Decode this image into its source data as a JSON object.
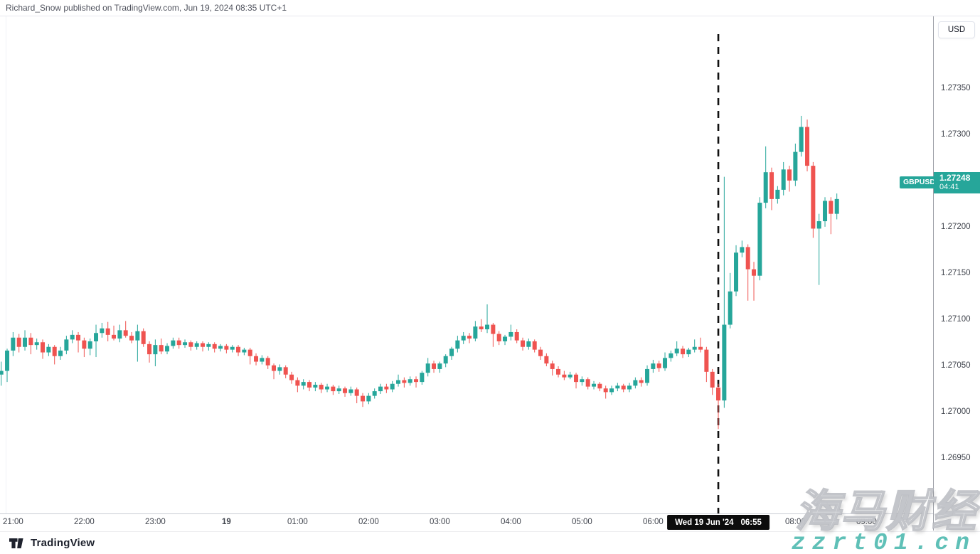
{
  "header": {
    "attribution": "Richard_Snow published on TradingView.com, Jun 19, 2024 08:35 UTC+1"
  },
  "price_axis": {
    "currency_label": "USD",
    "tick_labels": [
      "1.27350",
      "1.27300",
      "1.27250",
      "1.27200",
      "1.27150",
      "1.27100",
      "1.27050",
      "1.27000",
      "1.26950"
    ],
    "last_price_badge": {
      "symbol": "GBPUSD",
      "price": "1.27248",
      "countdown": "04:41",
      "color": "#26a69a"
    }
  },
  "time_axis": {
    "tick_labels": [
      {
        "text": "21:00",
        "index": 2
      },
      {
        "text": "22:00",
        "index": 14
      },
      {
        "text": "23:00",
        "index": 26
      },
      {
        "text": "19",
        "index": 38,
        "bold": true
      },
      {
        "text": "01:00",
        "index": 50
      },
      {
        "text": "02:00",
        "index": 62
      },
      {
        "text": "03:00",
        "index": 74
      },
      {
        "text": "04:00",
        "index": 86
      },
      {
        "text": "05:00",
        "index": 98
      },
      {
        "text": "06:00",
        "index": 110
      },
      {
        "text": "08:00",
        "index": 134
      },
      {
        "text": "09:00",
        "index": 146
      }
    ],
    "crosshair_badge": {
      "date": "Wed 19 Jun '24",
      "time": "06:55",
      "index": 121
    }
  },
  "footer": {
    "brand": "TradingView"
  },
  "watermark": {
    "line1": "海马财经",
    "line2": "zzrt01.cn",
    "accent_color": "#5fc0b7"
  },
  "chart_data": {
    "type": "candlestick",
    "symbol": "GBPUSD",
    "quote_currency": "USD",
    "interval_minutes": 5,
    "up_color": "#26a69a",
    "down_color": "#ef5350",
    "grid": false,
    "legend_position": "none",
    "y_axis": {
      "top_price": 1.27428,
      "bottom_price": 1.2689,
      "tick_step": 0.0005
    },
    "event_marker": {
      "style": "dashed-vertical-line",
      "color": "#111111",
      "time": "06:55",
      "candle_index": 121
    },
    "last_price": 1.27248,
    "columns": [
      "time",
      "open",
      "high",
      "low",
      "close"
    ],
    "candles": [
      [
        "20:50",
        1.27058,
        1.27072,
        1.27046,
        1.27062
      ],
      [
        "20:55",
        1.27062,
        1.27086,
        1.2705,
        1.27084
      ],
      [
        "21:00",
        1.27084,
        1.27104,
        1.27078,
        1.27098
      ],
      [
        "21:05",
        1.27098,
        1.27102,
        1.27082,
        1.27088
      ],
      [
        "21:10",
        1.27088,
        1.27106,
        1.27084,
        1.27098
      ],
      [
        "21:15",
        1.27098,
        1.27103,
        1.2708,
        1.2709
      ],
      [
        "21:20",
        1.2709,
        1.27097,
        1.27085,
        1.27093
      ],
      [
        "21:25",
        1.27093,
        1.27096,
        1.27075,
        1.27082
      ],
      [
        "21:30",
        1.27082,
        1.27091,
        1.27078,
        1.27088
      ],
      [
        "21:35",
        1.27088,
        1.2709,
        1.27069,
        1.27078
      ],
      [
        "21:40",
        1.27078,
        1.27088,
        1.27074,
        1.27084
      ],
      [
        "21:45",
        1.27084,
        1.271,
        1.2708,
        1.27096
      ],
      [
        "21:50",
        1.27096,
        1.27106,
        1.27092,
        1.27101
      ],
      [
        "21:55",
        1.27101,
        1.27104,
        1.27082,
        1.27095
      ],
      [
        "22:00",
        1.27095,
        1.27098,
        1.27077,
        1.27086
      ],
      [
        "22:05",
        1.27086,
        1.27097,
        1.27079,
        1.27094
      ],
      [
        "22:10",
        1.27094,
        1.27112,
        1.27077,
        1.27103
      ],
      [
        "22:15",
        1.27103,
        1.27114,
        1.27098,
        1.27108
      ],
      [
        "22:20",
        1.27108,
        1.27115,
        1.27094,
        1.27101
      ],
      [
        "22:25",
        1.27101,
        1.27111,
        1.27095,
        1.27097
      ],
      [
        "22:30",
        1.27097,
        1.27112,
        1.27093,
        1.27106
      ],
      [
        "22:35",
        1.27106,
        1.27116,
        1.27098,
        1.271
      ],
      [
        "22:40",
        1.271,
        1.27104,
        1.27092,
        1.27095
      ],
      [
        "22:45",
        1.27095,
        1.27112,
        1.27072,
        1.27105
      ],
      [
        "22:50",
        1.27105,
        1.27108,
        1.27088,
        1.27091
      ],
      [
        "22:55",
        1.27091,
        1.27094,
        1.27071,
        1.2708
      ],
      [
        "23:00",
        1.2708,
        1.27096,
        1.27067,
        1.2709
      ],
      [
        "23:05",
        1.2709,
        1.27097,
        1.2708,
        1.27083
      ],
      [
        "23:10",
        1.27083,
        1.27092,
        1.2708,
        1.27089
      ],
      [
        "23:15",
        1.27089,
        1.27098,
        1.27086,
        1.27095
      ],
      [
        "23:20",
        1.27095,
        1.27098,
        1.27086,
        1.2709
      ],
      [
        "23:25",
        1.2709,
        1.27096,
        1.27087,
        1.27093
      ],
      [
        "23:30",
        1.27093,
        1.27095,
        1.27084,
        1.27088
      ],
      [
        "23:35",
        1.27088,
        1.27094,
        1.27085,
        1.27092
      ],
      [
        "23:40",
        1.27092,
        1.27094,
        1.27083,
        1.27088
      ],
      [
        "23:45",
        1.27088,
        1.27093,
        1.27084,
        1.27091
      ],
      [
        "23:50",
        1.27091,
        1.27093,
        1.27082,
        1.27086
      ],
      [
        "23:55",
        1.27086,
        1.27091,
        1.27083,
        1.27089
      ],
      [
        "00:00",
        1.27089,
        1.27091,
        1.27081,
        1.27085
      ],
      [
        "00:05",
        1.27085,
        1.2709,
        1.27082,
        1.27088
      ],
      [
        "00:10",
        1.27088,
        1.2709,
        1.27078,
        1.27082
      ],
      [
        "00:15",
        1.27082,
        1.27087,
        1.27079,
        1.27085
      ],
      [
        "00:20",
        1.27085,
        1.27087,
        1.27069,
        1.27078
      ],
      [
        "00:25",
        1.27078,
        1.27081,
        1.27068,
        1.27072
      ],
      [
        "00:30",
        1.27072,
        1.27079,
        1.27069,
        1.27076
      ],
      [
        "00:35",
        1.27076,
        1.27078,
        1.27064,
        1.27068
      ],
      [
        "00:40",
        1.27068,
        1.2707,
        1.27053,
        1.27062
      ],
      [
        "00:45",
        1.27062,
        1.27069,
        1.27058,
        1.27066
      ],
      [
        "00:50",
        1.27066,
        1.27068,
        1.27054,
        1.27058
      ],
      [
        "00:55",
        1.27058,
        1.27061,
        1.27048,
        1.27052
      ],
      [
        "01:00",
        1.27052,
        1.27055,
        1.27039,
        1.27046
      ],
      [
        "01:05",
        1.27046,
        1.27053,
        1.27042,
        1.2705
      ],
      [
        "01:10",
        1.2705,
        1.27052,
        1.2704,
        1.27044
      ],
      [
        "01:15",
        1.27044,
        1.2705,
        1.2704,
        1.27047
      ],
      [
        "01:20",
        1.27047,
        1.27049,
        1.27038,
        1.27042
      ],
      [
        "01:25",
        1.27042,
        1.27048,
        1.27039,
        1.27045
      ],
      [
        "01:30",
        1.27045,
        1.27047,
        1.27036,
        1.2704
      ],
      [
        "01:35",
        1.2704,
        1.27046,
        1.27037,
        1.27043
      ],
      [
        "01:40",
        1.27043,
        1.27045,
        1.27034,
        1.27038
      ],
      [
        "01:45",
        1.27038,
        1.27045,
        1.27035,
        1.27042
      ],
      [
        "01:50",
        1.27042,
        1.27044,
        1.27027,
        1.27035
      ],
      [
        "01:55",
        1.27035,
        1.27038,
        1.27023,
        1.27029
      ],
      [
        "02:00",
        1.27029,
        1.27038,
        1.27026,
        1.27035
      ],
      [
        "02:05",
        1.27035,
        1.27043,
        1.27032,
        1.2704
      ],
      [
        "02:10",
        1.2704,
        1.27048,
        1.27037,
        1.27045
      ],
      [
        "02:15",
        1.27045,
        1.27048,
        1.27038,
        1.27042
      ],
      [
        "02:20",
        1.27042,
        1.27051,
        1.27039,
        1.27048
      ],
      [
        "02:25",
        1.27048,
        1.27058,
        1.27045,
        1.27052
      ],
      [
        "02:30",
        1.27052,
        1.27055,
        1.27044,
        1.27049
      ],
      [
        "02:35",
        1.27049,
        1.27056,
        1.27046,
        1.27053
      ],
      [
        "02:40",
        1.27053,
        1.27056,
        1.27044,
        1.2705
      ],
      [
        "02:45",
        1.2705,
        1.27062,
        1.27047,
        1.2706
      ],
      [
        "02:50",
        1.2706,
        1.27076,
        1.27056,
        1.2707
      ],
      [
        "02:55",
        1.2707,
        1.27073,
        1.2706,
        1.27064
      ],
      [
        "03:00",
        1.27064,
        1.27072,
        1.2706,
        1.2707
      ],
      [
        "03:05",
        1.2707,
        1.2708,
        1.27066,
        1.27078
      ],
      [
        "03:10",
        1.27078,
        1.27088,
        1.27074,
        1.27086
      ],
      [
        "03:15",
        1.27086,
        1.271,
        1.27082,
        1.27095
      ],
      [
        "03:20",
        1.27095,
        1.27104,
        1.27091,
        1.271
      ],
      [
        "03:25",
        1.271,
        1.27103,
        1.27092,
        1.27097
      ],
      [
        "03:30",
        1.27097,
        1.27116,
        1.27094,
        1.2711
      ],
      [
        "03:35",
        1.2711,
        1.27118,
        1.27104,
        1.27107
      ],
      [
        "03:40",
        1.27107,
        1.27134,
        1.27103,
        1.27112
      ],
      [
        "03:45",
        1.27112,
        1.27114,
        1.27088,
        1.27102
      ],
      [
        "03:50",
        1.27102,
        1.27105,
        1.2709,
        1.27094
      ],
      [
        "03:55",
        1.27094,
        1.27101,
        1.2709,
        1.27099
      ],
      [
        "04:00",
        1.27099,
        1.27112,
        1.27095,
        1.27104
      ],
      [
        "04:05",
        1.27104,
        1.27107,
        1.27092,
        1.27095
      ],
      [
        "04:10",
        1.27095,
        1.27098,
        1.27084,
        1.27088
      ],
      [
        "04:15",
        1.27088,
        1.27097,
        1.27085,
        1.27094
      ],
      [
        "04:20",
        1.27094,
        1.27096,
        1.27082,
        1.27085
      ],
      [
        "04:25",
        1.27085,
        1.27088,
        1.27074,
        1.27078
      ],
      [
        "04:30",
        1.27078,
        1.27081,
        1.27067,
        1.2707
      ],
      [
        "04:35",
        1.2707,
        1.27073,
        1.27057,
        1.27064
      ],
      [
        "04:40",
        1.27064,
        1.27067,
        1.27055,
        1.27058
      ],
      [
        "04:45",
        1.27058,
        1.27062,
        1.27052,
        1.27055
      ],
      [
        "04:50",
        1.27055,
        1.27061,
        1.27053,
        1.27058
      ],
      [
        "04:55",
        1.27058,
        1.2706,
        1.27043,
        1.2705
      ],
      [
        "05:00",
        1.2705,
        1.27056,
        1.27046,
        1.27053
      ],
      [
        "05:05",
        1.27053,
        1.27055,
        1.27042,
        1.27045
      ],
      [
        "05:10",
        1.27045,
        1.27051,
        1.27042,
        1.27048
      ],
      [
        "05:15",
        1.27048,
        1.2705,
        1.2704,
        1.27043
      ],
      [
        "05:20",
        1.27043,
        1.27046,
        1.27032,
        1.27039
      ],
      [
        "05:25",
        1.27039,
        1.27046,
        1.27036,
        1.27043
      ],
      [
        "05:30",
        1.27043,
        1.27049,
        1.2704,
        1.27046
      ],
      [
        "05:35",
        1.27046,
        1.27048,
        1.27039,
        1.27042
      ],
      [
        "05:40",
        1.27042,
        1.27049,
        1.27039,
        1.27046
      ],
      [
        "05:45",
        1.27046,
        1.27055,
        1.27043,
        1.27052
      ],
      [
        "05:50",
        1.27052,
        1.27055,
        1.27045,
        1.27049
      ],
      [
        "05:55",
        1.27049,
        1.27068,
        1.27046,
        1.27064
      ],
      [
        "06:00",
        1.27064,
        1.27074,
        1.2706,
        1.2707
      ],
      [
        "06:05",
        1.2707,
        1.27073,
        1.27061,
        1.27065
      ],
      [
        "06:10",
        1.27065,
        1.27082,
        1.27062,
        1.27076
      ],
      [
        "06:15",
        1.27076,
        1.27084,
        1.27072,
        1.27081
      ],
      [
        "06:20",
        1.27081,
        1.27094,
        1.27078,
        1.27086
      ],
      [
        "06:25",
        1.27086,
        1.27089,
        1.27076,
        1.2708
      ],
      [
        "06:30",
        1.2708,
        1.27087,
        1.27077,
        1.27085
      ],
      [
        "06:35",
        1.27085,
        1.27096,
        1.27082,
        1.27088
      ],
      [
        "06:40",
        1.27088,
        1.27098,
        1.27082,
        1.27085
      ],
      [
        "06:45",
        1.27085,
        1.27088,
        1.2705,
        1.27061
      ],
      [
        "06:50",
        1.27061,
        1.27064,
        1.27036,
        1.27044
      ],
      [
        "06:55",
        1.27044,
        1.27048,
        1.26999,
        1.2703
      ],
      [
        "07:00",
        1.2703,
        1.27272,
        1.27022,
        1.27112
      ],
      [
        "07:05",
        1.27112,
        1.27168,
        1.27108,
        1.27148
      ],
      [
        "07:10",
        1.27148,
        1.27198,
        1.27143,
        1.2719
      ],
      [
        "07:15",
        1.2719,
        1.27203,
        1.27185,
        1.27196
      ],
      [
        "07:20",
        1.27196,
        1.27199,
        1.27138,
        1.27172
      ],
      [
        "07:25",
        1.27172,
        1.2718,
        1.27138,
        1.27165
      ],
      [
        "07:30",
        1.27165,
        1.2725,
        1.2716,
        1.27244
      ],
      [
        "07:35",
        1.27244,
        1.27305,
        1.27238,
        1.27277
      ],
      [
        "07:40",
        1.27277,
        1.27282,
        1.27236,
        1.27248
      ],
      [
        "07:45",
        1.27248,
        1.27262,
        1.27243,
        1.27258
      ],
      [
        "07:50",
        1.27258,
        1.27288,
        1.27252,
        1.2728
      ],
      [
        "07:55",
        1.2728,
        1.27284,
        1.27256,
        1.27268
      ],
      [
        "08:00",
        1.27268,
        1.27308,
        1.27262,
        1.27299
      ],
      [
        "08:05",
        1.27299,
        1.27338,
        1.27294,
        1.27326
      ],
      [
        "08:10",
        1.27326,
        1.27334,
        1.27278,
        1.27284
      ],
      [
        "08:15",
        1.27284,
        1.27288,
        1.27206,
        1.27216
      ],
      [
        "08:20",
        1.27216,
        1.27232,
        1.27155,
        1.27224
      ],
      [
        "08:25",
        1.27224,
        1.2725,
        1.27218,
        1.27246
      ],
      [
        "08:30",
        1.27246,
        1.2725,
        1.2721,
        1.27232
      ],
      [
        "08:35",
        1.27232,
        1.27254,
        1.27226,
        1.27248
      ]
    ]
  }
}
